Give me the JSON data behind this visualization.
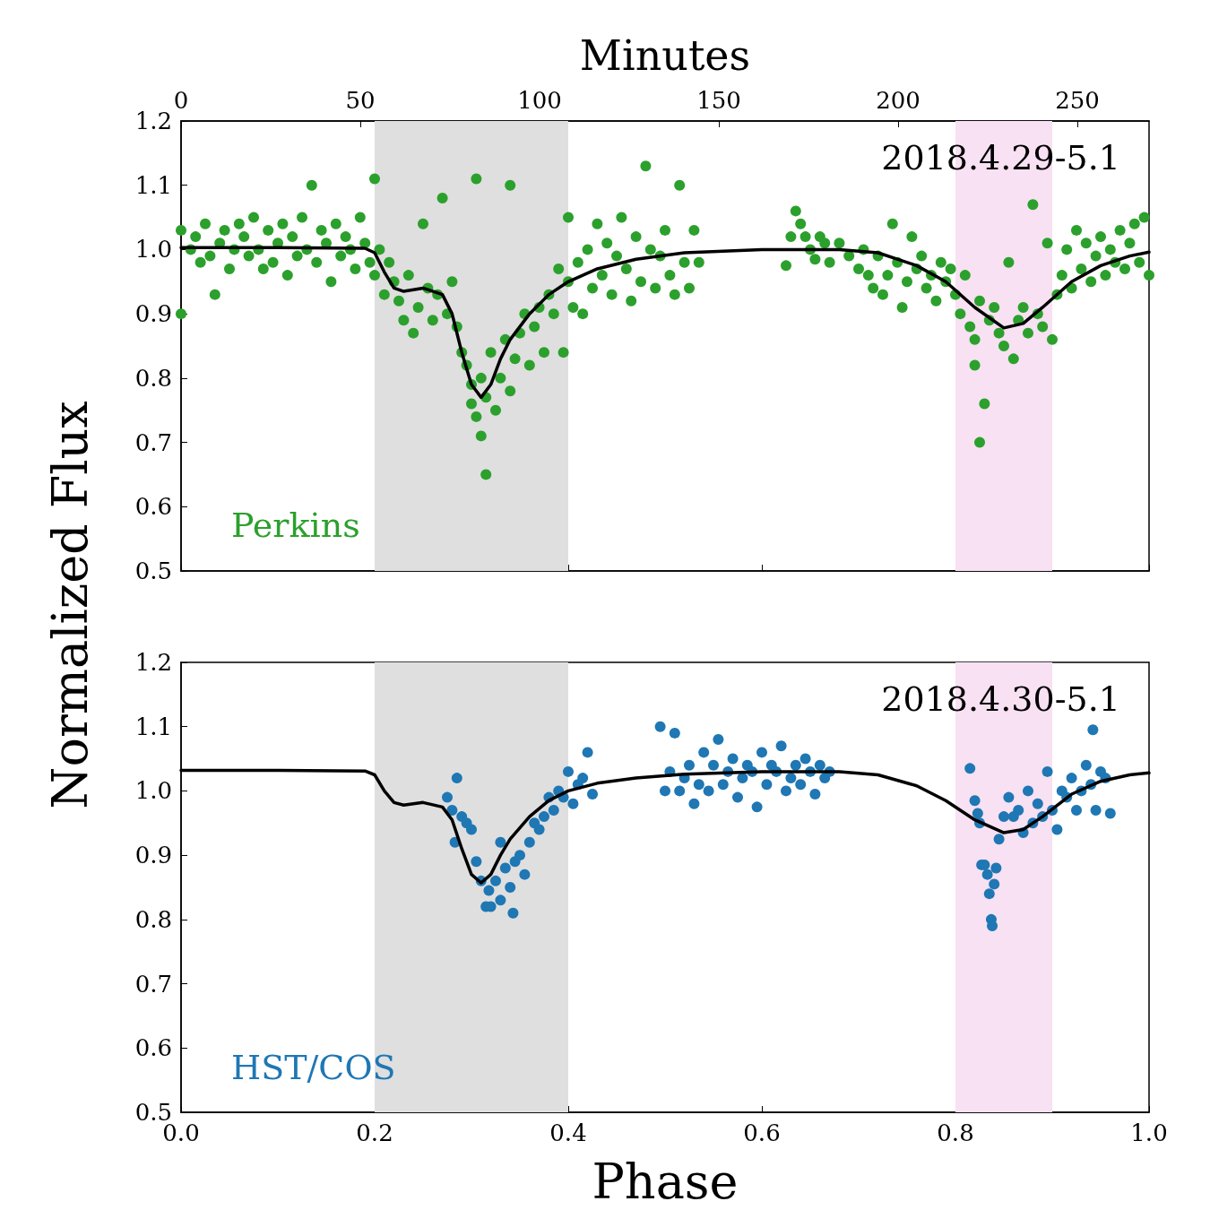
{
  "chart_data": [
    {
      "type": "scatter",
      "ylabel": "Normalized Flux",
      "x2label": "Minutes",
      "annotations": [
        "2018.4.29-5.1"
      ],
      "xlim": [
        0,
        1
      ],
      "xticks": [
        0,
        0.2,
        0.4,
        0.6,
        0.8,
        1
      ],
      "x2lim": [
        0,
        270
      ],
      "x2ticks": [
        0,
        50,
        100,
        150,
        200,
        250
      ],
      "ylim": [
        0.5,
        1.2
      ],
      "yticks": [
        0.5,
        0.6,
        0.7,
        0.8,
        0.9,
        {
          "value": 1,
          "label": "1.0"
        },
        1.1,
        1.2
      ],
      "tick_labels": "y",
      "bands": [
        {
          "axis": "x",
          "from": 0.2,
          "to": 0.4,
          "color": "#dfdfdf"
        },
        {
          "axis": "x",
          "from": 0.8,
          "to": 0.9,
          "color": "#f7e1f2"
        }
      ],
      "series": [
        {
          "name": "Perkins",
          "marker": "circle",
          "color": "#2ca02c",
          "x": [
            0,
            0,
            0.01,
            0.015,
            0.02,
            0.025,
            0.03,
            0.035,
            0.04,
            0.045,
            0.05,
            0.055,
            0.06,
            0.065,
            0.07,
            0.075,
            0.08,
            0.085,
            0.09,
            0.095,
            0.1,
            0.105,
            0.11,
            0.115,
            0.12,
            0.125,
            0.13,
            0.135,
            0.14,
            0.145,
            0.15,
            0.155,
            0.16,
            0.165,
            0.17,
            0.175,
            0.18,
            0.185,
            0.19,
            0.195,
            0.2,
            0.2,
            0.205,
            0.21,
            0.215,
            0.22,
            0.225,
            0.23,
            0.235,
            0.24,
            0.245,
            0.25,
            0.255,
            0.26,
            0.265,
            0.27,
            0.275,
            0.28,
            0.285,
            0.29,
            0.295,
            0.3,
            0.3,
            0.305,
            0.305,
            0.31,
            0.31,
            0.315,
            0.315,
            0.32,
            0.325,
            0.33,
            0.335,
            0.34,
            0.34,
            0.345,
            0.35,
            0.355,
            0.36,
            0.365,
            0.37,
            0.375,
            0.38,
            0.385,
            0.39,
            0.395,
            0.4,
            0.4,
            0.405,
            0.41,
            0.415,
            0.42,
            0.425,
            0.43,
            0.435,
            0.44,
            0.445,
            0.45,
            0.455,
            0.46,
            0.465,
            0.47,
            0.475,
            0.48,
            0.485,
            0.49,
            0.495,
            0.5,
            0.505,
            0.51,
            0.515,
            0.52,
            0.525,
            0.53,
            0.535,
            0.625,
            0.63,
            0.635,
            0.64,
            0.645,
            0.65,
            0.655,
            0.66,
            0.665,
            0.67,
            0.68,
            0.69,
            0.7,
            0.705,
            0.71,
            0.715,
            0.72,
            0.725,
            0.73,
            0.735,
            0.74,
            0.745,
            0.75,
            0.755,
            0.76,
            0.765,
            0.77,
            0.775,
            0.78,
            0.785,
            0.79,
            0.795,
            0.8,
            0.805,
            0.81,
            0.815,
            0.82,
            0.82,
            0.825,
            0.825,
            0.83,
            0.835,
            0.84,
            0.845,
            0.85,
            0.855,
            0.86,
            0.865,
            0.87,
            0.875,
            0.88,
            0.885,
            0.89,
            0.895,
            0.9,
            0.905,
            0.91,
            0.915,
            0.92,
            0.925,
            0.93,
            0.935,
            0.94,
            0.945,
            0.95,
            0.955,
            0.96,
            0.965,
            0.97,
            0.975,
            0.98,
            0.985,
            0.99,
            0.995,
            1
          ],
          "values": [
            1.03,
            0.9,
            1.0,
            1.02,
            0.98,
            1.04,
            0.99,
            0.93,
            1.01,
            1.03,
            0.97,
            1.0,
            1.04,
            1.02,
            0.99,
            1.05,
            1.0,
            0.97,
            1.03,
            0.98,
            1.01,
            1.04,
            0.96,
            1.02,
            0.99,
            1.05,
            1.0,
            1.1,
            0.98,
            1.03,
            1.01,
            0.95,
            1.04,
            0.99,
            1.02,
            1.0,
            0.97,
            1.05,
            1.01,
            0.98,
            0.96,
            1.11,
            1.0,
            0.93,
            0.98,
            0.95,
            0.92,
            0.89,
            0.96,
            0.87,
            0.91,
            1.04,
            0.94,
            0.89,
            0.93,
            1.08,
            0.9,
            0.95,
            0.88,
            0.84,
            0.82,
            0.79,
            0.76,
            0.74,
            1.11,
            0.71,
            0.8,
            0.65,
            0.77,
            0.84,
            0.75,
            0.8,
            0.86,
            1.1,
            0.78,
            0.83,
            0.87,
            0.9,
            0.82,
            0.88,
            0.91,
            0.84,
            0.93,
            0.9,
            0.97,
            0.84,
            1.05,
            0.95,
            0.91,
            0.98,
            0.9,
            1.0,
            0.94,
            1.04,
            0.96,
            1.01,
            0.93,
            0.99,
            1.05,
            0.97,
            0.92,
            1.02,
            0.95,
            1.13,
            1.0,
            0.94,
            0.99,
            1.03,
            0.96,
            0.93,
            1.1,
            0.98,
            0.94,
            1.03,
            0.98,
            0.975,
            1.02,
            1.06,
            1.04,
            1.02,
            1.0,
            0.985,
            1.02,
            1.01,
            0.98,
            1.01,
            0.99,
            0.97,
            1.0,
            0.96,
            0.94,
            0.99,
            0.93,
            0.96,
            1.04,
            0.98,
            0.91,
            0.95,
            1.02,
            0.97,
            0.99,
            0.94,
            0.96,
            0.92,
            0.98,
            0.95,
            0.97,
            0.93,
            0.9,
            0.96,
            0.88,
            0.86,
            0.82,
            0.92,
            0.7,
            0.76,
            0.89,
            0.91,
            0.87,
            0.85,
            0.98,
            0.83,
            0.89,
            0.91,
            0.87,
            1.07,
            0.9,
            0.88,
            1.01,
            0.86,
            0.93,
            0.96,
            1.0,
            0.94,
            1.03,
            0.97,
            1.01,
            0.95,
            0.99,
            1.02,
            0.96,
            1.0,
            0.98,
            1.03,
            0.97,
            1.01,
            1.04,
            0.98,
            1.05,
            0.96
          ]
        },
        {
          "type": "line",
          "color": "#000000",
          "x": [
            0,
            0.1,
            0.19,
            0.2,
            0.21,
            0.22,
            0.23,
            0.25,
            0.27,
            0.28,
            0.29,
            0.3,
            0.31,
            0.32,
            0.33,
            0.34,
            0.36,
            0.38,
            0.4,
            0.43,
            0.47,
            0.52,
            0.6,
            0.68,
            0.72,
            0.76,
            0.79,
            0.82,
            0.85,
            0.87,
            0.89,
            0.92,
            0.95,
            0.98,
            1
          ],
          "values": [
            1.003,
            1.003,
            1.002,
            0.995,
            0.965,
            0.94,
            0.935,
            0.94,
            0.93,
            0.9,
            0.84,
            0.79,
            0.77,
            0.79,
            0.83,
            0.86,
            0.9,
            0.93,
            0.95,
            0.97,
            0.985,
            0.995,
            1.0,
            1.0,
            0.995,
            0.975,
            0.95,
            0.91,
            0.878,
            0.885,
            0.91,
            0.95,
            0.975,
            0.99,
            0.996
          ]
        }
      ]
    },
    {
      "type": "scatter",
      "xlabel": "Phase",
      "annotations": [
        "2018.4.30-5.1"
      ],
      "xlim": [
        0,
        1
      ],
      "xticks": [
        {
          "value": 0,
          "label": "0.0"
        },
        0.2,
        0.4,
        0.6,
        0.8,
        {
          "value": 1,
          "label": "1.0"
        }
      ],
      "ylim": [
        0.5,
        1.2
      ],
      "yticks": [
        0.5,
        0.6,
        0.7,
        0.8,
        0.9,
        {
          "value": 1,
          "label": "1.0"
        },
        1.1,
        1.2
      ],
      "bands": [
        {
          "axis": "x",
          "from": 0.2,
          "to": 0.4,
          "color": "#dfdfdf"
        },
        {
          "axis": "x",
          "from": 0.8,
          "to": 0.9,
          "color": "#f7e1f2"
        }
      ],
      "series": [
        {
          "name": "HST/COS",
          "marker": "circle",
          "color": "#1f77b4",
          "x": [
            0.275,
            0.28,
            0.283,
            0.285,
            0.29,
            0.295,
            0.3,
            0.305,
            0.31,
            0.315,
            0.318,
            0.32,
            0.325,
            0.33,
            0.33,
            0.335,
            0.34,
            0.343,
            0.345,
            0.35,
            0.355,
            0.36,
            0.365,
            0.37,
            0.375,
            0.38,
            0.385,
            0.39,
            0.395,
            0.4,
            0.405,
            0.41,
            0.415,
            0.42,
            0.425,
            0.495,
            0.5,
            0.505,
            0.51,
            0.515,
            0.52,
            0.525,
            0.53,
            0.535,
            0.54,
            0.545,
            0.55,
            0.555,
            0.56,
            0.565,
            0.57,
            0.575,
            0.58,
            0.585,
            0.59,
            0.595,
            0.6,
            0.605,
            0.61,
            0.615,
            0.62,
            0.625,
            0.63,
            0.635,
            0.64,
            0.645,
            0.65,
            0.655,
            0.66,
            0.665,
            0.67,
            0.815,
            0.82,
            0.823,
            0.825,
            0.827,
            0.83,
            0.833,
            0.835,
            0.837,
            0.838,
            0.84,
            0.842,
            0.845,
            0.85,
            0.855,
            0.86,
            0.865,
            0.87,
            0.875,
            0.88,
            0.885,
            0.89,
            0.895,
            0.9,
            0.905,
            0.91,
            0.915,
            0.92,
            0.925,
            0.93,
            0.935,
            0.94,
            0.942,
            0.945,
            0.95,
            0.955,
            0.96
          ],
          "values": [
            0.99,
            0.97,
            0.92,
            1.02,
            0.96,
            0.95,
            0.94,
            0.89,
            0.86,
            0.82,
            0.845,
            0.82,
            0.86,
            0.83,
            0.92,
            0.88,
            0.85,
            0.81,
            0.89,
            0.9,
            0.87,
            0.92,
            0.95,
            0.94,
            0.96,
            0.99,
            0.97,
            1.0,
            0.99,
            1.03,
            0.98,
            1.01,
            1.02,
            1.06,
            0.995,
            1.1,
            1.0,
            1.03,
            1.09,
            1.0,
            1.02,
            1.04,
            0.98,
            1.01,
            1.06,
            1.0,
            1.04,
            1.08,
            1.01,
            1.03,
            1.05,
            0.99,
            1.02,
            1.04,
            1.03,
            0.975,
            1.06,
            1.01,
            1.04,
            1.03,
            1.07,
            1.0,
            1.02,
            1.04,
            1.01,
            1.05,
            1.03,
            0.995,
            1.04,
            1.02,
            1.03,
            1.035,
            0.985,
            0.965,
            0.95,
            0.885,
            0.885,
            0.87,
            0.84,
            0.8,
            0.79,
            0.855,
            0.88,
            0.925,
            0.96,
            0.99,
            0.96,
            0.97,
            0.935,
            1.0,
            0.95,
            0.98,
            0.96,
            1.03,
            0.97,
            0.94,
            1.0,
            0.99,
            1.02,
            0.97,
            1.0,
            1.04,
            1.01,
            1.095,
            0.97,
            1.03,
            1.02,
            0.965
          ]
        },
        {
          "type": "line",
          "color": "#000000",
          "x": [
            0,
            0.1,
            0.19,
            0.2,
            0.21,
            0.22,
            0.23,
            0.25,
            0.27,
            0.28,
            0.29,
            0.3,
            0.31,
            0.32,
            0.33,
            0.34,
            0.36,
            0.38,
            0.4,
            0.43,
            0.47,
            0.52,
            0.6,
            0.68,
            0.72,
            0.76,
            0.79,
            0.82,
            0.85,
            0.87,
            0.89,
            0.92,
            0.95,
            0.98,
            1
          ],
          "values": [
            1.032,
            1.032,
            1.031,
            1.025,
            1.0,
            0.982,
            0.978,
            0.982,
            0.975,
            0.955,
            0.91,
            0.87,
            0.857,
            0.87,
            0.9,
            0.925,
            0.96,
            0.985,
            1.0,
            1.012,
            1.02,
            1.026,
            1.03,
            1.03,
            1.025,
            1.008,
            0.985,
            0.955,
            0.935,
            0.94,
            0.96,
            0.995,
            1.015,
            1.025,
            1.028
          ]
        }
      ]
    }
  ]
}
